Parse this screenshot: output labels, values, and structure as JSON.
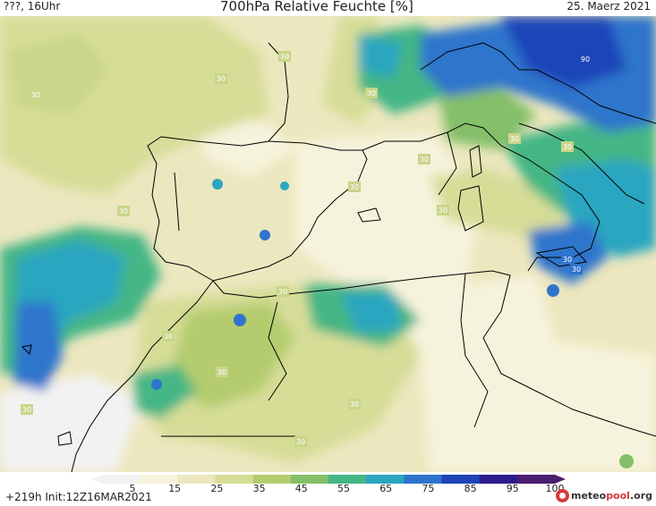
{
  "header": {
    "left": "???, 16Uhr",
    "center": "700hPa Relative Feuchte [%]",
    "right": "25. Maerz 2021"
  },
  "legend": {
    "ticks": [
      "5",
      "15",
      "25",
      "35",
      "45",
      "55",
      "65",
      "75",
      "85",
      "95",
      "100"
    ],
    "colors": [
      "#f2f2f2",
      "#f6f3dc",
      "#ece7be",
      "#d6dd97",
      "#b4cc6e",
      "#84bf69",
      "#45b685",
      "#2aa6c0",
      "#2f74cc",
      "#1f44b8",
      "#2b1e8c",
      "#4a1e70"
    ]
  },
  "footer": {
    "run": "+219h  Init:12Z16MAR2021",
    "brand_main": "meteo",
    "brand_accent": "pool",
    "brand_tld": ".org"
  },
  "contour_labels": [
    "30",
    "30",
    "30",
    "30",
    "30",
    "30",
    "30",
    "30",
    "30",
    "30",
    "30",
    "30",
    "30",
    "30",
    "30",
    "30",
    "90",
    "30",
    "30"
  ]
}
